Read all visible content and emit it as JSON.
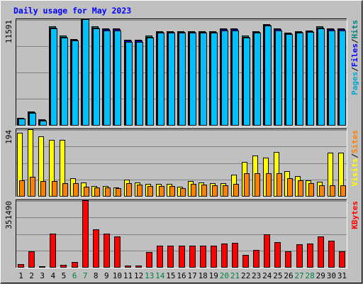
{
  "chart_data": {
    "type": "bar",
    "title": "Daily usage for May 2023",
    "categories": [
      "1",
      "2",
      "3",
      "4",
      "5",
      "6",
      "7",
      "8",
      "9",
      "10",
      "11",
      "12",
      "13",
      "14",
      "15",
      "16",
      "17",
      "18",
      "19",
      "20",
      "21",
      "22",
      "23",
      "24",
      "25",
      "26",
      "27",
      "28",
      "29",
      "30",
      "31"
    ],
    "weekend_days": [
      "6",
      "7",
      "13",
      "14",
      "20",
      "21",
      "27",
      "28"
    ],
    "panels": [
      {
        "name": "pages-files-hits",
        "y_tick_label": "11591",
        "ymax": 11591,
        "legend": [
          {
            "text": "Pages",
            "color": "#00a8d0"
          },
          {
            "text": "/",
            "color": "#000000"
          },
          {
            "text": "Files",
            "color": "#0000ff"
          },
          {
            "text": "/",
            "color": "#000000"
          },
          {
            "text": "Hits",
            "color": "#008080"
          }
        ],
        "series": [
          {
            "name": "Hits",
            "color": "#008080",
            "values": [
              760,
              1450,
              600,
              10850,
              9840,
              9500,
              12150,
              10850,
              10640,
              10640,
              9400,
              9400,
              9840,
              10350,
              10350,
              10350,
              10350,
              10350,
              10350,
              10640,
              10640,
              9840,
              10350,
              11150,
              10640,
              10200,
              10350,
              10430,
              10850,
              10640,
              10640
            ]
          },
          {
            "name": "Files",
            "color": "#0000ff",
            "values": [
              720,
              1380,
              560,
              10750,
              9750,
              9400,
              12050,
              10750,
              10540,
              10540,
              9300,
              9300,
              9750,
              10250,
              10250,
              10250,
              10250,
              10250,
              10250,
              10540,
              10540,
              9750,
              10250,
              11050,
              10540,
              10100,
              10250,
              10340,
              10750,
              10540,
              10540
            ]
          },
          {
            "name": "Pages",
            "color": "#00c0ff",
            "values": [
              680,
              1300,
              500,
              10640,
              9640,
              9300,
              11950,
              10640,
              10430,
              10430,
              9200,
              9200,
              9640,
              10150,
              10150,
              10150,
              10150,
              10150,
              10150,
              10430,
              10430,
              9640,
              10150,
              10950,
              10430,
              10000,
              10150,
              10240,
              10640,
              10430,
              10430
            ]
          }
        ]
      },
      {
        "name": "visits-sites",
        "y_tick_label": "194",
        "ymax": 194,
        "legend": [
          {
            "text": "Visits",
            "color": "#ffff00"
          },
          {
            "text": "/",
            "color": "#000000"
          },
          {
            "text": "Sites",
            "color": "#ff8000"
          }
        ],
        "series": [
          {
            "name": "Visits",
            "color": "#ffff00",
            "values": [
              185,
              197,
              175,
              165,
              165,
              52,
              40,
              30,
              30,
              25,
              48,
              40,
              35,
              35,
              35,
              27,
              43,
              40,
              38,
              38,
              62,
              100,
              118,
              112,
              130,
              73,
              58,
              45,
              42,
              127,
              127
            ]
          },
          {
            "name": "Sites",
            "color": "#ff8000",
            "values": [
              45,
              57,
              43,
              43,
              38,
              38,
              27,
              25,
              25,
              23,
              37,
              33,
              30,
              30,
              30,
              23,
              35,
              33,
              32,
              32,
              35,
              67,
              67,
              67,
              67,
              52,
              45,
              38,
              32,
              32,
              32
            ]
          }
        ]
      },
      {
        "name": "kbytes",
        "y_tick_label": "351490",
        "ymax": 351490,
        "legend": [
          {
            "text": "KBytes",
            "color": "#ff0000"
          }
        ],
        "series": [
          {
            "name": "KBytes",
            "color": "#ff0000",
            "values": [
              15000,
              83000,
              5000,
              178000,
              12000,
              25000,
              355000,
              200000,
              178000,
              163000,
              8000,
              8000,
              78000,
              115000,
              115000,
              115000,
              115000,
              115000,
              115000,
              126000,
              130000,
              65000,
              90000,
              175000,
              132000,
              85000,
              120000,
              126000,
              163000,
              140000,
              85000
            ]
          }
        ]
      }
    ]
  }
}
